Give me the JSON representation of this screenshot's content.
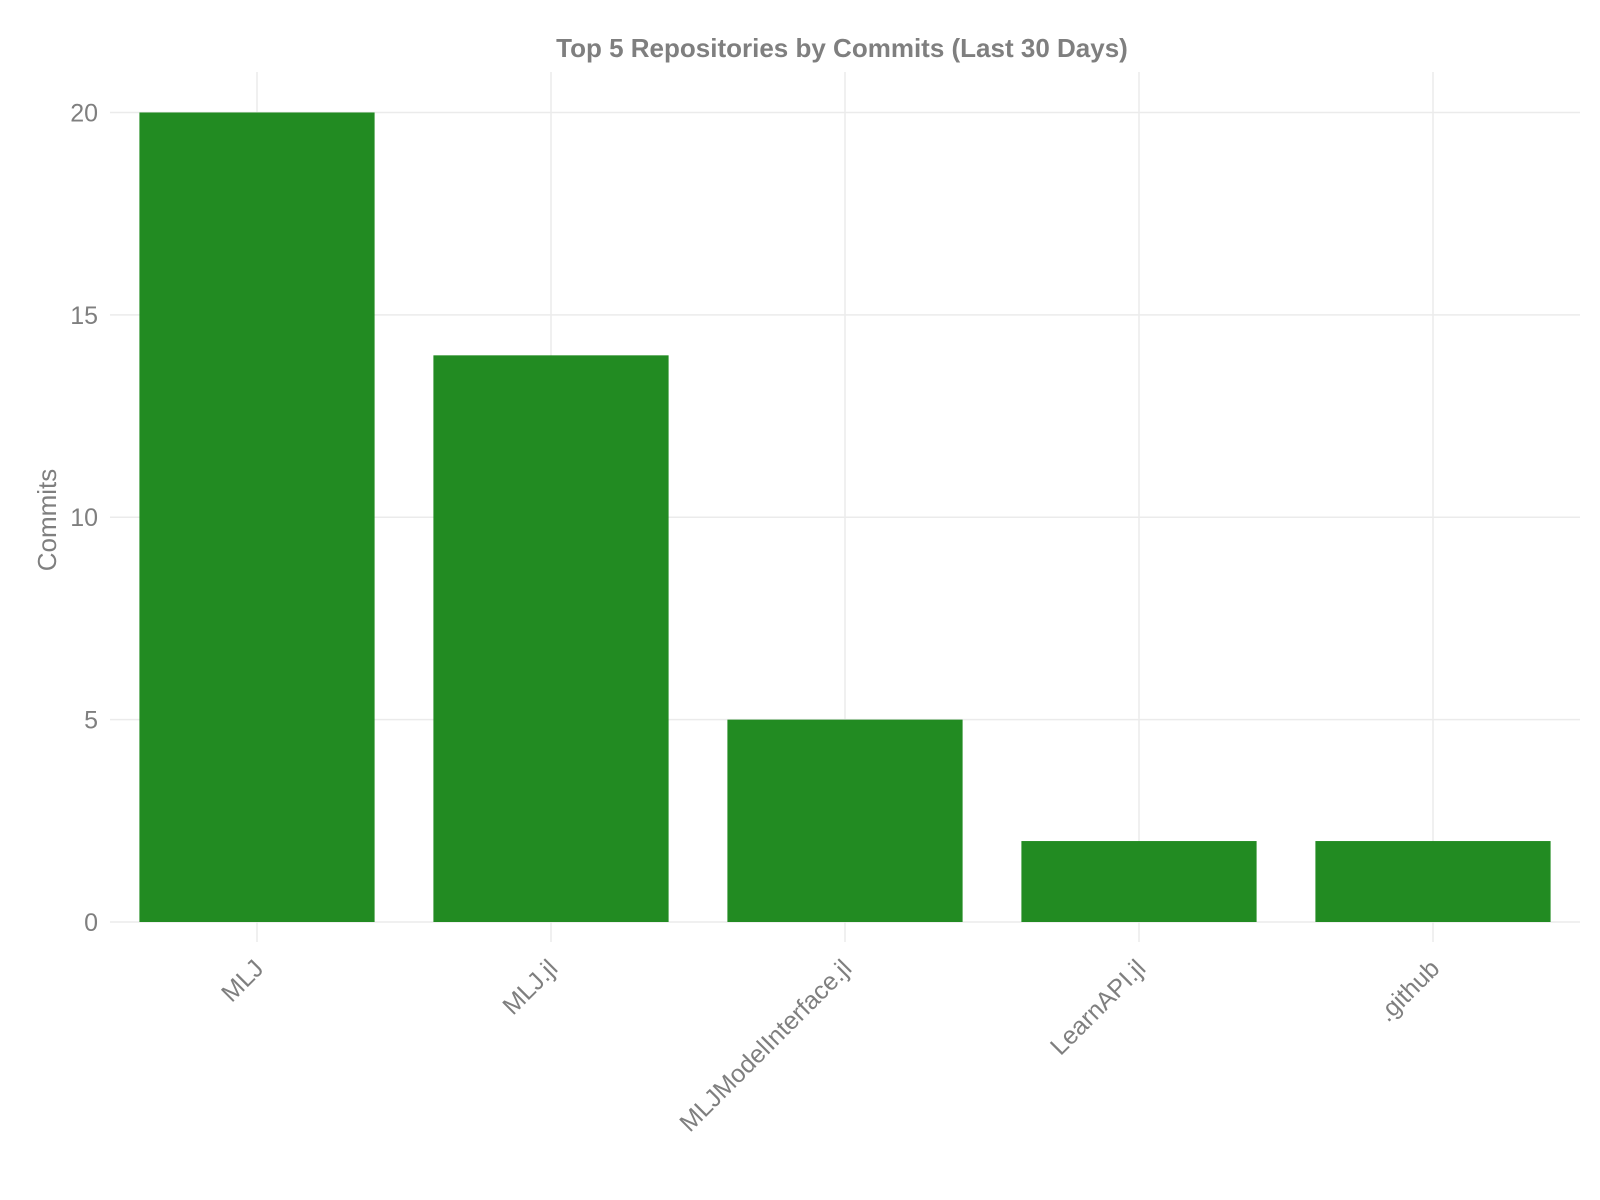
{
  "chart_data": {
    "type": "bar",
    "title": "Top 5 Repositories by Commits (Last 30 Days)",
    "xlabel": "",
    "ylabel": "Commits",
    "categories": [
      "MLJ",
      "MLJ.jl",
      "MLJModelInterface.jl",
      "LearnAPI.jl",
      ".github"
    ],
    "values": [
      20,
      14,
      5,
      2,
      2
    ],
    "ylim": [
      0,
      21
    ],
    "yticks": [
      0,
      5,
      10,
      15,
      20
    ],
    "grid": true,
    "legend": "none",
    "colors": {
      "bar": "#228B22",
      "grid": "#ebebeb",
      "text": "#7f7f7f"
    }
  }
}
